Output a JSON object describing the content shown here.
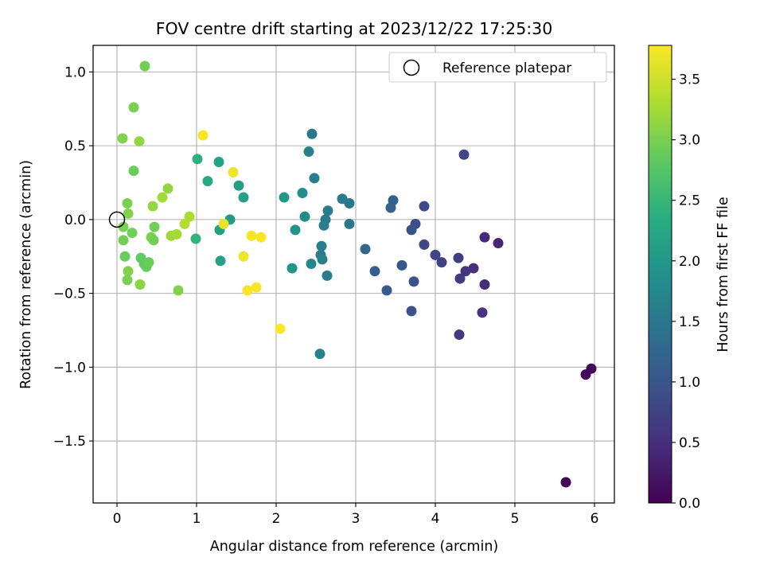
{
  "chart_data": {
    "type": "scatter",
    "title": "FOV centre drift starting at 2023/12/22 17:25:30",
    "xlabel": "Angular distance from reference (arcmin)",
    "ylabel": "Rotation from reference (arcmin)",
    "xlim": [
      -0.3,
      6.25
    ],
    "ylim": [
      -1.92,
      1.18
    ],
    "xticks": [
      0,
      1,
      2,
      3,
      4,
      5,
      6
    ],
    "yticks": [
      -1.5,
      -1.0,
      -0.5,
      0.0,
      0.5,
      1.0
    ],
    "xtick_labels": [
      "0",
      "1",
      "2",
      "3",
      "4",
      "5",
      "6"
    ],
    "ytick_labels": [
      "−1.5",
      "−1.0",
      "−0.5",
      "0.0",
      "0.5",
      "1.0"
    ],
    "grid": true,
    "legend": {
      "position": "upper-right",
      "entries": [
        "Reference platepar"
      ]
    },
    "reference_point": {
      "x": 0,
      "y": 0
    },
    "colorbar": {
      "label": "Hours from first FF file",
      "colormap": "viridis",
      "min": 0,
      "max": 3.78,
      "ticks": [
        0,
        0.5,
        1,
        1.5,
        2,
        2.5,
        3,
        3.5
      ],
      "tick_labels": [
        "0.0",
        "0.5",
        "1.0",
        "1.5",
        "2.0",
        "2.5",
        "3.0",
        "3.5"
      ]
    },
    "series": [
      {
        "points": [
          {
            "x": 5.64,
            "y": -1.78,
            "c": 0.03
          },
          {
            "x": 5.89,
            "y": -1.05,
            "c": 0.07
          },
          {
            "x": 5.96,
            "y": -1.01,
            "c": 0.05
          },
          {
            "x": 4.3,
            "y": -0.78,
            "c": 0.62
          },
          {
            "x": 4.59,
            "y": -0.63,
            "c": 0.55
          },
          {
            "x": 4.62,
            "y": -0.44,
            "c": 0.48
          },
          {
            "x": 4.48,
            "y": -0.33,
            "c": 0.5
          },
          {
            "x": 4.38,
            "y": -0.35,
            "c": 0.58
          },
          {
            "x": 4.31,
            "y": -0.4,
            "c": 0.66
          },
          {
            "x": 4.29,
            "y": -0.26,
            "c": 0.7
          },
          {
            "x": 4.62,
            "y": -0.12,
            "c": 0.42
          },
          {
            "x": 4.79,
            "y": -0.16,
            "c": 0.4
          },
          {
            "x": 4.36,
            "y": 0.44,
            "c": 0.8
          },
          {
            "x": 4.08,
            "y": -0.29,
            "c": 0.74
          },
          {
            "x": 4.0,
            "y": -0.24,
            "c": 0.78
          },
          {
            "x": 3.86,
            "y": -0.17,
            "c": 0.82
          },
          {
            "x": 3.86,
            "y": 0.09,
            "c": 0.86
          },
          {
            "x": 3.75,
            "y": -0.03,
            "c": 0.9
          },
          {
            "x": 3.7,
            "y": -0.07,
            "c": 0.92
          },
          {
            "x": 3.73,
            "y": -0.42,
            "c": 0.95
          },
          {
            "x": 3.7,
            "y": -0.62,
            "c": 0.96
          },
          {
            "x": 3.58,
            "y": -0.31,
            "c": 1.0
          },
          {
            "x": 3.47,
            "y": 0.13,
            "c": 1.2
          },
          {
            "x": 3.44,
            "y": 0.08,
            "c": 1.18
          },
          {
            "x": 3.39,
            "y": -0.48,
            "c": 1.05
          },
          {
            "x": 3.24,
            "y": -0.35,
            "c": 1.12
          },
          {
            "x": 3.12,
            "y": -0.2,
            "c": 1.25
          },
          {
            "x": 2.92,
            "y": 0.11,
            "c": 1.45
          },
          {
            "x": 2.92,
            "y": -0.03,
            "c": 1.5
          },
          {
            "x": 2.83,
            "y": 0.14,
            "c": 1.55
          },
          {
            "x": 2.65,
            "y": 0.06,
            "c": 1.55
          },
          {
            "x": 2.62,
            "y": 0.0,
            "c": 1.58
          },
          {
            "x": 2.6,
            "y": -0.04,
            "c": 1.6
          },
          {
            "x": 2.57,
            "y": -0.18,
            "c": 1.62
          },
          {
            "x": 2.56,
            "y": -0.24,
            "c": 1.6
          },
          {
            "x": 2.58,
            "y": -0.27,
            "c": 1.65
          },
          {
            "x": 2.64,
            "y": -0.38,
            "c": 1.55
          },
          {
            "x": 2.55,
            "y": -0.91,
            "c": 1.65
          },
          {
            "x": 2.48,
            "y": 0.28,
            "c": 1.55
          },
          {
            "x": 2.45,
            "y": 0.58,
            "c": 1.5
          },
          {
            "x": 2.41,
            "y": 0.46,
            "c": 1.65
          },
          {
            "x": 2.44,
            "y": -0.3,
            "c": 1.75
          },
          {
            "x": 2.36,
            "y": 0.02,
            "c": 1.8
          },
          {
            "x": 2.33,
            "y": 0.18,
            "c": 1.85
          },
          {
            "x": 2.24,
            "y": -0.07,
            "c": 1.9
          },
          {
            "x": 2.2,
            "y": -0.33,
            "c": 1.95
          },
          {
            "x": 2.1,
            "y": 0.15,
            "c": 2.0
          },
          {
            "x": 1.59,
            "y": 0.15,
            "c": 2.15
          },
          {
            "x": 1.53,
            "y": 0.23,
            "c": 2.1
          },
          {
            "x": 1.42,
            "y": 0.0,
            "c": 2.05
          },
          {
            "x": 1.28,
            "y": 0.39,
            "c": 2.15
          },
          {
            "x": 1.29,
            "y": -0.07,
            "c": 2.1
          },
          {
            "x": 1.3,
            "y": -0.28,
            "c": 2.15
          },
          {
            "x": 1.14,
            "y": 0.26,
            "c": 2.3
          },
          {
            "x": 1.01,
            "y": 0.41,
            "c": 2.4
          },
          {
            "x": 0.99,
            "y": -0.13,
            "c": 2.45
          },
          {
            "x": 0.35,
            "y": 1.04,
            "c": 2.95
          },
          {
            "x": 0.21,
            "y": 0.76,
            "c": 3.0
          },
          {
            "x": 0.07,
            "y": 0.55,
            "c": 3.05
          },
          {
            "x": 0.28,
            "y": 0.53,
            "c": 3.15
          },
          {
            "x": 0.21,
            "y": 0.33,
            "c": 2.9
          },
          {
            "x": 0.13,
            "y": 0.11,
            "c": 3.0
          },
          {
            "x": 0.14,
            "y": 0.04,
            "c": 3.05
          },
          {
            "x": 0.08,
            "y": -0.05,
            "c": 3.0
          },
          {
            "x": 0.19,
            "y": -0.09,
            "c": 2.95
          },
          {
            "x": 0.08,
            "y": -0.14,
            "c": 2.95
          },
          {
            "x": 0.1,
            "y": -0.25,
            "c": 2.9
          },
          {
            "x": 0.14,
            "y": -0.35,
            "c": 3.05
          },
          {
            "x": 0.13,
            "y": -0.41,
            "c": 3.0
          },
          {
            "x": 0.29,
            "y": -0.44,
            "c": 3.1
          },
          {
            "x": 0.3,
            "y": -0.26,
            "c": 2.85
          },
          {
            "x": 0.34,
            "y": -0.3,
            "c": 2.85
          },
          {
            "x": 0.37,
            "y": -0.32,
            "c": 2.85
          },
          {
            "x": 0.4,
            "y": -0.29,
            "c": 2.9
          },
          {
            "x": 0.43,
            "y": -0.12,
            "c": 3.0
          },
          {
            "x": 0.46,
            "y": -0.14,
            "c": 2.95
          },
          {
            "x": 0.47,
            "y": -0.05,
            "c": 2.95
          },
          {
            "x": 0.45,
            "y": 0.09,
            "c": 3.15
          },
          {
            "x": 0.57,
            "y": 0.15,
            "c": 3.25
          },
          {
            "x": 0.64,
            "y": 0.21,
            "c": 3.15
          },
          {
            "x": 0.68,
            "y": -0.11,
            "c": 3.2
          },
          {
            "x": 0.75,
            "y": -0.1,
            "c": 3.25
          },
          {
            "x": 0.77,
            "y": -0.48,
            "c": 3.05
          },
          {
            "x": 0.85,
            "y": -0.03,
            "c": 3.35
          },
          {
            "x": 0.91,
            "y": 0.02,
            "c": 3.3
          },
          {
            "x": 1.08,
            "y": 0.57,
            "c": 3.75
          },
          {
            "x": 1.34,
            "y": -0.03,
            "c": 3.65
          },
          {
            "x": 1.46,
            "y": 0.32,
            "c": 3.7
          },
          {
            "x": 1.59,
            "y": -0.25,
            "c": 3.7
          },
          {
            "x": 1.64,
            "y": -0.48,
            "c": 3.75
          },
          {
            "x": 1.69,
            "y": -0.11,
            "c": 3.72
          },
          {
            "x": 1.75,
            "y": -0.46,
            "c": 3.74
          },
          {
            "x": 1.81,
            "y": -0.12,
            "c": 3.75
          },
          {
            "x": 2.05,
            "y": -0.74,
            "c": 3.76
          }
        ]
      }
    ]
  }
}
